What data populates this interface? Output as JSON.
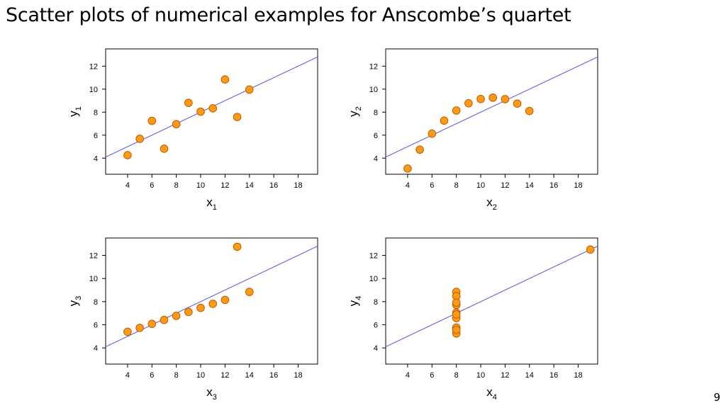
{
  "slide": {
    "title": "Scatter plots of numerical examples for Anscombe’s quartet",
    "page_number": "9"
  },
  "colors": {
    "point_fill": "#ff9a14",
    "point_stroke": "#c05a00",
    "regression_line": "#5555dd",
    "frame": "#000000"
  },
  "chart_data": [
    {
      "type": "scatter",
      "title": "",
      "xlabel": "x",
      "xlabel_sub": "1",
      "ylabel": "y",
      "ylabel_sub": "1",
      "xlim": [
        2.2,
        19.6
      ],
      "ylim": [
        2.6,
        13.5
      ],
      "xticks": [
        4,
        6,
        8,
        10,
        12,
        14,
        16,
        18
      ],
      "yticks": [
        4,
        6,
        8,
        10,
        12
      ],
      "grid": false,
      "regression": {
        "intercept": 3.0,
        "slope": 0.5
      },
      "x": [
        10,
        8,
        13,
        9,
        11,
        14,
        6,
        4,
        12,
        7,
        5
      ],
      "y": [
        8.04,
        6.95,
        7.58,
        8.81,
        8.33,
        9.96,
        7.24,
        4.26,
        10.84,
        4.82,
        5.68
      ]
    },
    {
      "type": "scatter",
      "title": "",
      "xlabel": "x",
      "xlabel_sub": "2",
      "ylabel": "y",
      "ylabel_sub": "2",
      "xlim": [
        2.2,
        19.6
      ],
      "ylim": [
        2.6,
        13.5
      ],
      "xticks": [
        4,
        6,
        8,
        10,
        12,
        14,
        16,
        18
      ],
      "yticks": [
        4,
        6,
        8,
        10,
        12
      ],
      "grid": false,
      "regression": {
        "intercept": 3.0,
        "slope": 0.5
      },
      "x": [
        10,
        8,
        13,
        9,
        11,
        14,
        6,
        4,
        12,
        7,
        5
      ],
      "y": [
        9.14,
        8.14,
        8.74,
        8.77,
        9.26,
        8.1,
        6.13,
        3.1,
        9.13,
        7.26,
        4.74
      ]
    },
    {
      "type": "scatter",
      "title": "",
      "xlabel": "x",
      "xlabel_sub": "3",
      "ylabel": "y",
      "ylabel_sub": "3",
      "xlim": [
        2.2,
        19.6
      ],
      "ylim": [
        2.6,
        13.5
      ],
      "xticks": [
        4,
        6,
        8,
        10,
        12,
        14,
        16,
        18
      ],
      "yticks": [
        4,
        6,
        8,
        10,
        12
      ],
      "grid": false,
      "regression": {
        "intercept": 3.0,
        "slope": 0.5
      },
      "x": [
        10,
        8,
        13,
        9,
        11,
        14,
        6,
        4,
        12,
        7,
        5
      ],
      "y": [
        7.46,
        6.77,
        12.74,
        7.11,
        7.81,
        8.84,
        6.08,
        5.39,
        8.15,
        6.42,
        5.73
      ]
    },
    {
      "type": "scatter",
      "title": "",
      "xlabel": "x",
      "xlabel_sub": "4",
      "ylabel": "y",
      "ylabel_sub": "4",
      "xlim": [
        2.2,
        19.6
      ],
      "ylim": [
        2.6,
        13.5
      ],
      "xticks": [
        4,
        6,
        8,
        10,
        12,
        14,
        16,
        18
      ],
      "yticks": [
        4,
        6,
        8,
        10,
        12
      ],
      "grid": false,
      "regression": {
        "intercept": 3.0,
        "slope": 0.5
      },
      "x": [
        8,
        8,
        8,
        8,
        8,
        8,
        8,
        19,
        8,
        8,
        8
      ],
      "y": [
        6.58,
        5.76,
        7.71,
        8.84,
        8.47,
        7.04,
        5.25,
        12.5,
        5.56,
        7.91,
        6.89
      ]
    }
  ]
}
